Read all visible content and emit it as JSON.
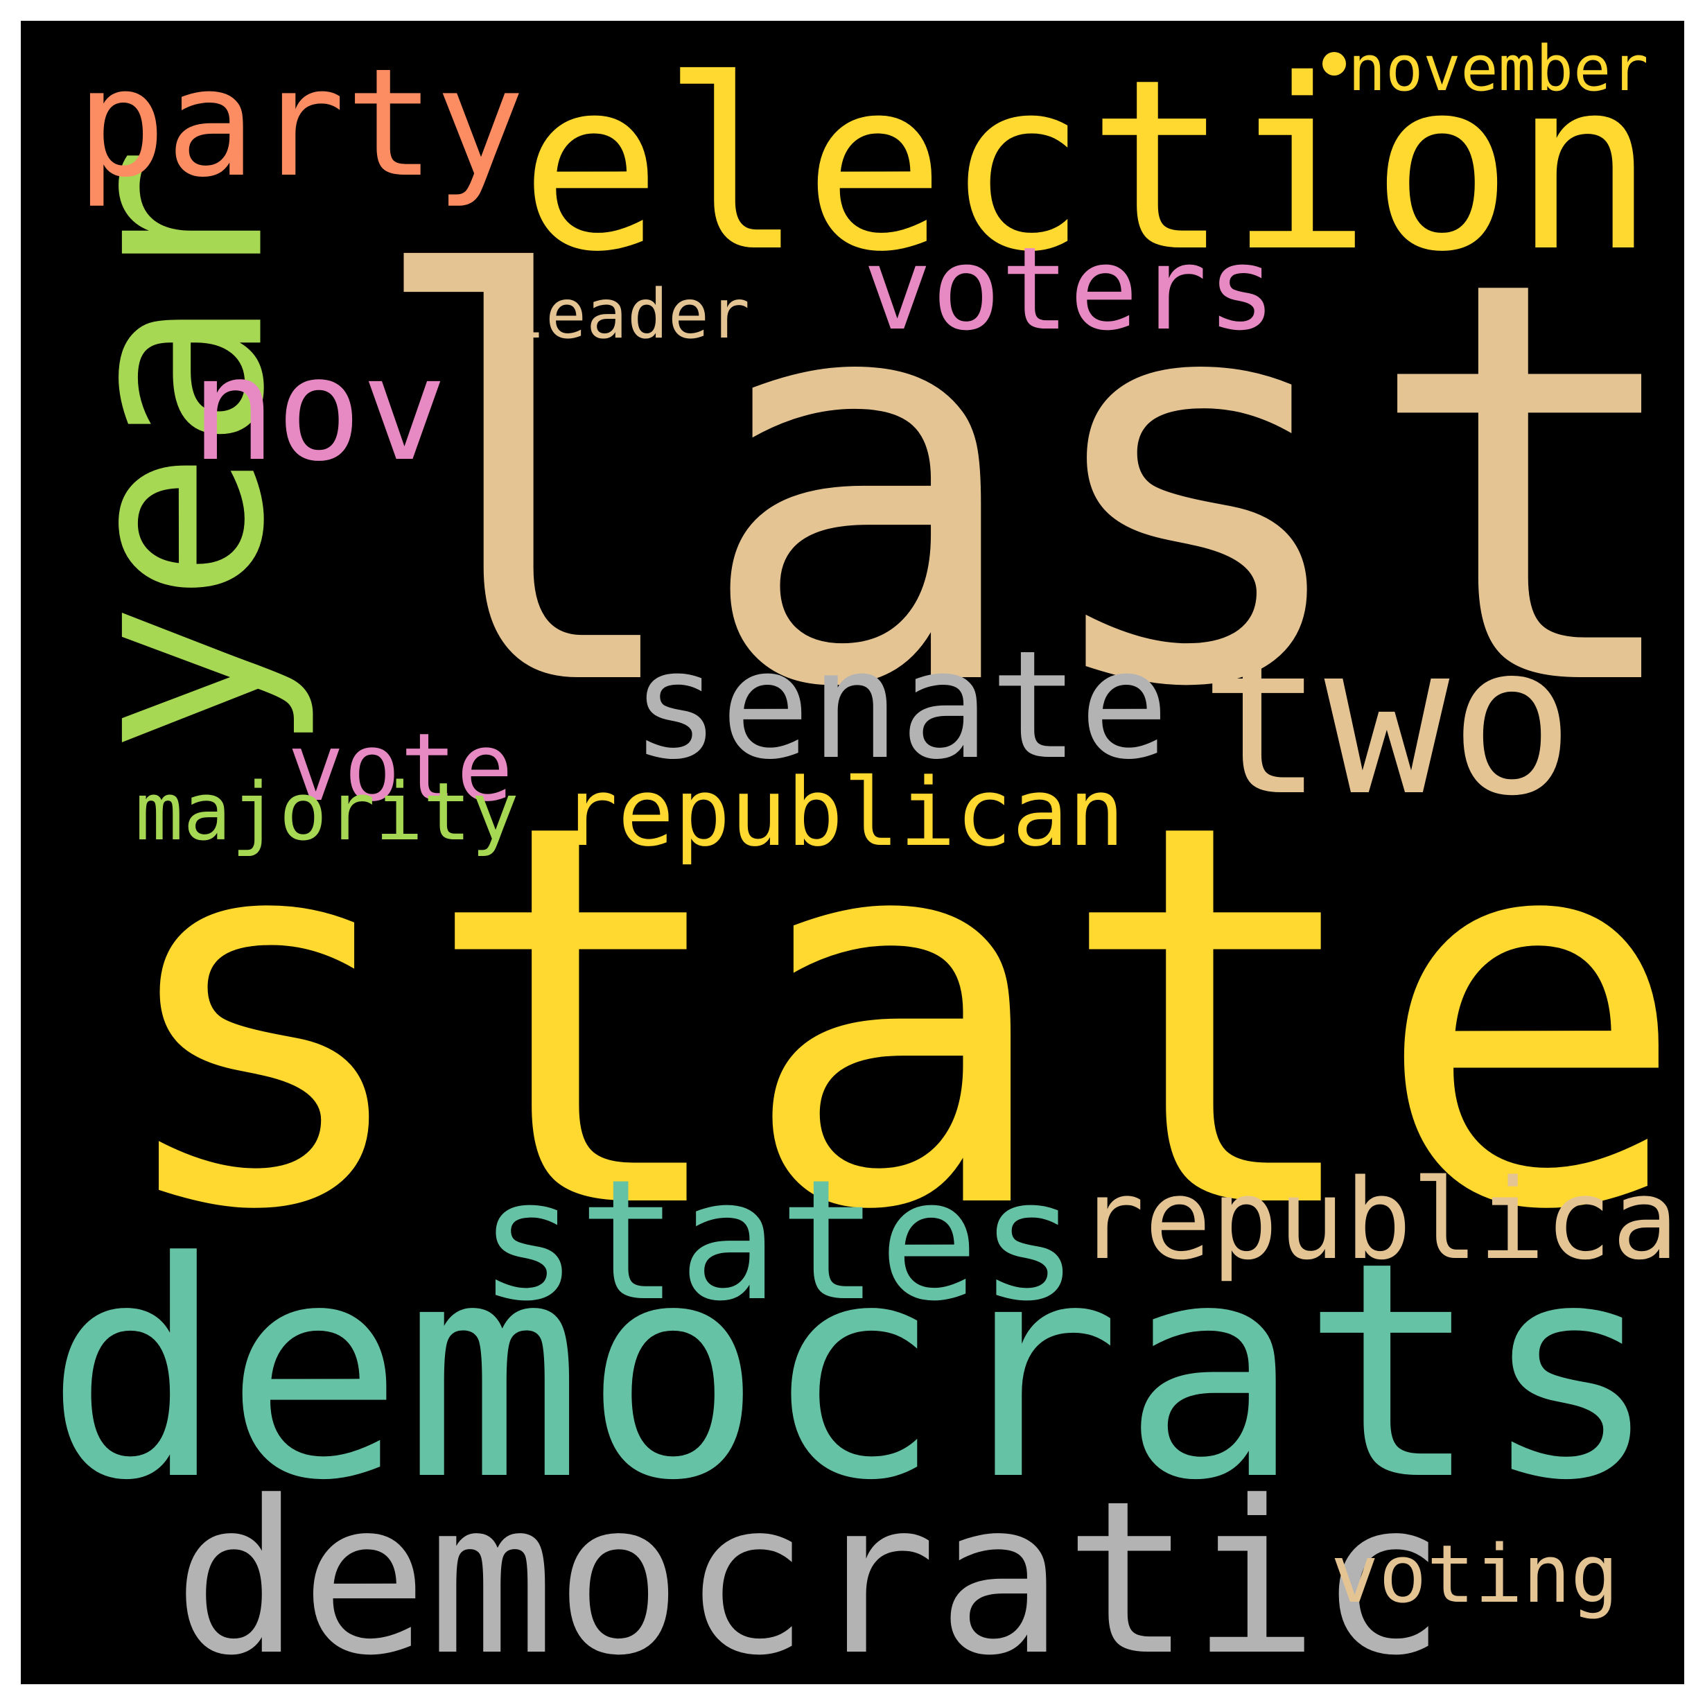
{
  "background_color": "#000000",
  "frame_color": "#ffffff",
  "dot_color": "#ffd92f",
  "words": {
    "last": {
      "text": "last",
      "color": "#e5c494"
    },
    "state": {
      "text": "state",
      "color": "#ffd92f"
    },
    "democrats": {
      "text": "democrats",
      "color": "#66c2a5"
    },
    "election": {
      "text": "election",
      "color": "#ffd92f"
    },
    "year": {
      "text": "year",
      "color": "#a6d854"
    },
    "democratic": {
      "text": "democratic",
      "color": "#b3b3b3"
    },
    "two": {
      "text": "two",
      "color": "#e5c494"
    },
    "states": {
      "text": "states",
      "color": "#66c2a5"
    },
    "senate": {
      "text": "senate",
      "color": "#b3b3b3"
    },
    "party": {
      "text": "party",
      "color": "#fc8d62"
    },
    "nov": {
      "text": "nov",
      "color": "#e78ac3"
    },
    "voters": {
      "text": "voters",
      "color": "#e78ac3"
    },
    "republicans": {
      "text": "republicans",
      "color": "#e5c494"
    },
    "republican": {
      "text": "republican",
      "color": "#ffd92f"
    },
    "vote": {
      "text": "vote",
      "color": "#e78ac3"
    },
    "majority": {
      "text": "majority",
      "color": "#a6d854"
    },
    "voting": {
      "text": "voting",
      "color": "#e5c494"
    },
    "leader": {
      "text": "leader",
      "color": "#e5c494"
    },
    "november": {
      "text": "november",
      "color": "#ffd92f"
    }
  }
}
